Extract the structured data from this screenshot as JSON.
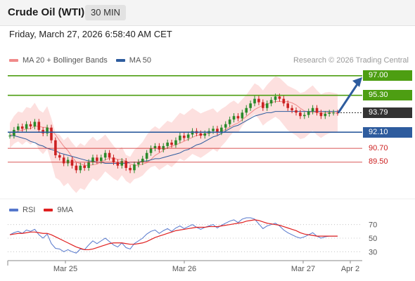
{
  "header": {
    "title": "Crude Oil (WTI)",
    "timeframe": "30 MIN"
  },
  "datetime": "Friday, March 27, 2026 6:58:40 AM CET",
  "legend_main": [
    {
      "label": "MA 20 + Bollinger Bands",
      "color": "#f08a8a"
    },
    {
      "label": "MA 50",
      "color": "#2e5c9e"
    }
  ],
  "credit": "Research © 2026 Trading Central",
  "legend_rsi": [
    {
      "label": "RSI",
      "color": "#5577cc"
    },
    {
      "label": "9MA",
      "color": "#e02020"
    }
  ],
  "colors": {
    "resistance": "#4d9e12",
    "support": "#2e5c9e",
    "minor": "#cc1f1f",
    "current": "#333333",
    "up": "#2a8a2a",
    "down": "#cc2222"
  },
  "levels": [
    {
      "value": 97.0,
      "label": "97.00",
      "kind": "resistance"
    },
    {
      "value": 95.3,
      "label": "95.30",
      "kind": "resistance"
    },
    {
      "value": 93.79,
      "label": "93.79",
      "kind": "current"
    },
    {
      "value": 92.1,
      "label": "92.10",
      "kind": "support"
    },
    {
      "value": 90.7,
      "label": "90.70",
      "kind": "minor"
    },
    {
      "value": 89.5,
      "label": "89.50",
      "kind": "minor"
    }
  ],
  "rsi_ticks": [
    "70",
    "50",
    "30"
  ],
  "chart_data": {
    "type": "line",
    "x_ticks": [
      "Mar 25",
      "Mar 26",
      "Mar 27",
      "Apr 2"
    ],
    "price_series": [
      91.8,
      92.3,
      92.6,
      92.4,
      92.8,
      92.6,
      93.0,
      92.3,
      92.0,
      92.5,
      91.4,
      90.1,
      89.9,
      89.4,
      89.7,
      89.2,
      88.8,
      89.2,
      89.0,
      89.5,
      89.9,
      89.6,
      89.9,
      90.3,
      89.9,
      89.5,
      89.2,
      89.6,
      89.0,
      88.8,
      89.3,
      89.5,
      89.8,
      90.3,
      90.7,
      90.9,
      90.6,
      90.9,
      91.2,
      91.0,
      91.4,
      91.8,
      91.6,
      91.9,
      92.2,
      92.0,
      91.8,
      92.0,
      92.2,
      92.4,
      92.1,
      92.5,
      92.8,
      93.2,
      93.5,
      93.3,
      93.8,
      94.2,
      94.6,
      95.0,
      94.7,
      94.2,
      94.6,
      94.9,
      95.2,
      95.0,
      94.6,
      94.2,
      94.0,
      93.8,
      93.5,
      93.6,
      93.9,
      94.2,
      93.8,
      93.5,
      93.7,
      93.8,
      93.8,
      93.79
    ],
    "ma50": [
      91.8,
      91.8,
      91.7,
      91.6,
      91.5,
      91.3,
      91.2,
      91.0,
      90.9,
      90.7,
      90.6,
      90.5,
      90.3,
      90.2,
      90.1,
      90.0,
      89.9,
      89.8,
      89.7,
      89.6,
      89.6,
      89.5,
      89.5,
      89.4,
      89.4,
      89.4,
      89.4,
      89.4,
      89.4,
      89.5,
      89.5,
      89.5,
      89.6,
      89.6,
      89.7,
      89.8,
      89.8,
      89.9,
      90.0,
      90.1,
      90.2,
      90.3,
      90.5,
      90.6,
      90.8,
      91.0,
      91.1,
      91.3,
      91.5,
      91.7,
      91.8,
      92.0,
      92.2,
      92.4,
      92.6,
      92.7,
      92.9,
      93.1,
      93.3,
      93.5,
      93.6,
      93.7,
      93.8,
      93.8,
      93.9,
      93.9,
      93.9,
      93.9,
      93.9,
      93.9,
      93.9,
      93.9,
      93.9,
      93.9,
      93.9,
      93.9,
      93.9,
      93.9,
      93.9,
      93.9
    ],
    "bollinger_upper": 95.8,
    "bollinger_lower": 88.3,
    "rsi": [
      55,
      58,
      60,
      57,
      62,
      60,
      63,
      55,
      50,
      56,
      42,
      35,
      34,
      30,
      33,
      30,
      28,
      34,
      33,
      40,
      46,
      42,
      46,
      50,
      45,
      40,
      37,
      43,
      36,
      34,
      42,
      46,
      50,
      56,
      60,
      62,
      57,
      61,
      64,
      60,
      65,
      68,
      64,
      67,
      70,
      66,
      63,
      66,
      68,
      70,
      65,
      69,
      72,
      75,
      77,
      73,
      78,
      80,
      80,
      78,
      71,
      64,
      68,
      70,
      72,
      68,
      62,
      58,
      55,
      52,
      50,
      52,
      55,
      58,
      53,
      50,
      52,
      53,
      53,
      53
    ],
    "rsi_ma": [
      55,
      56,
      57,
      57,
      58,
      59,
      59,
      58,
      57,
      57,
      55,
      52,
      49,
      46,
      43,
      40,
      37,
      35,
      33,
      33,
      34,
      36,
      38,
      40,
      42,
      43,
      43,
      43,
      42,
      41,
      41,
      42,
      43,
      45,
      48,
      51,
      53,
      55,
      57,
      59,
      61,
      62,
      63,
      64,
      65,
      66,
      66,
      66,
      67,
      67,
      67,
      68,
      69,
      70,
      71,
      72,
      73,
      75,
      76,
      77,
      76,
      74,
      72,
      71,
      70,
      69,
      67,
      65,
      63,
      61,
      58,
      56,
      55,
      54,
      53,
      53,
      53,
      53,
      53,
      53
    ],
    "rsi_ylim": [
      20,
      80
    ],
    "ylim": [
      87.6,
      97.6
    ]
  }
}
